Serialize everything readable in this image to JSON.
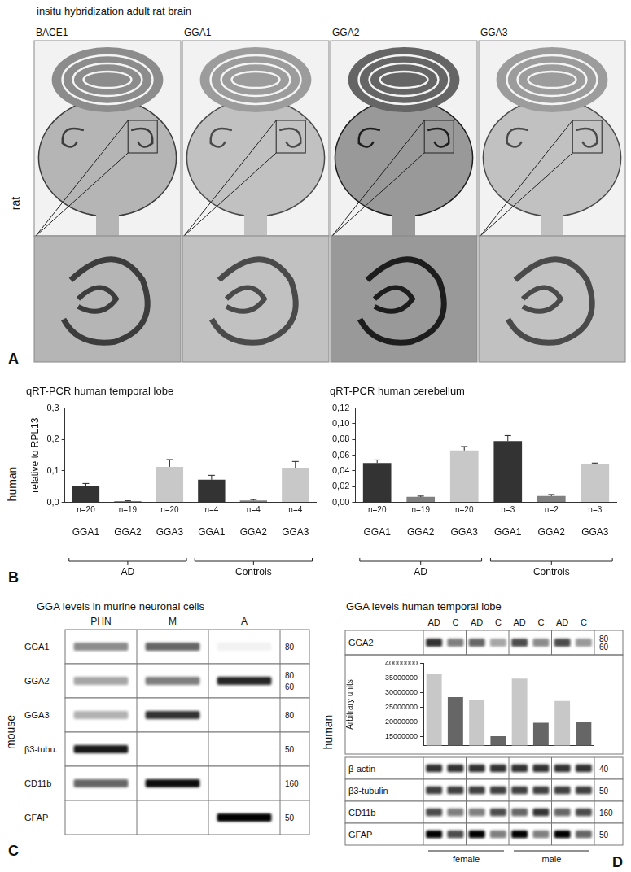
{
  "panel_A": {
    "letter": "A",
    "title": "insitu hybridization adult rat brain",
    "side_label": "rat",
    "probes": [
      "BACE1",
      "GGA1",
      "GGA2",
      "GGA3"
    ],
    "signal": [
      0.55,
      0.4,
      0.9,
      0.4
    ]
  },
  "panel_B": {
    "letter": "B",
    "side_label": "human"
  },
  "chart_data": [
    {
      "type": "bar",
      "title": "qRT-PCR human temporal lobe",
      "y_label": "relative to RPL13",
      "categories": [
        "GGA1",
        "GGA2",
        "GGA3",
        "GGA1",
        "GGA2",
        "GGA3"
      ],
      "values": [
        0.052,
        0.004,
        0.113,
        0.072,
        0.006,
        0.11
      ],
      "errors": [
        0.008,
        0.001,
        0.023,
        0.014,
        0.003,
        0.02
      ],
      "n_labels": [
        "n=20",
        "n=19",
        "n=20",
        "n=4",
        "n=4",
        "n=4"
      ],
      "groups": [
        "AD",
        "Controls"
      ],
      "colors": [
        "#333333",
        "#808080",
        "#c8c8c8",
        "#333333",
        "#808080",
        "#c8c8c8"
      ],
      "ylim": [
        0,
        0.3
      ],
      "yticks": [
        {
          "value": 0,
          "label": "0,0"
        },
        {
          "value": 0.1,
          "label": "0,1"
        },
        {
          "value": 0.2,
          "label": "0,2"
        },
        {
          "value": 0.3,
          "label": "0,3"
        }
      ],
      "grid": false
    },
    {
      "type": "bar",
      "title": "qRT-PCR human cerebellum",
      "categories": [
        "GGA1",
        "GGA2",
        "GGA3",
        "GGA1",
        "GGA2",
        "GGA3"
      ],
      "values": [
        0.05,
        0.007,
        0.066,
        0.078,
        0.008,
        0.049
      ],
      "errors": [
        0.004,
        0.001,
        0.005,
        0.007,
        0.002,
        0.001
      ],
      "n_labels": [
        "n=20",
        "n=19",
        "n=20",
        "n=3",
        "n=2",
        "n=3"
      ],
      "groups": [
        "AD",
        "Controls"
      ],
      "colors": [
        "#333333",
        "#808080",
        "#c8c8c8",
        "#333333",
        "#808080",
        "#c8c8c8"
      ],
      "ylim": [
        0,
        0.12
      ],
      "yticks": [
        {
          "value": 0,
          "label": "0,00"
        },
        {
          "value": 0.02,
          "label": "0,02"
        },
        {
          "value": 0.04,
          "label": "0,04"
        },
        {
          "value": 0.06,
          "label": "0,06"
        },
        {
          "value": 0.08,
          "label": "0,08"
        },
        {
          "value": 0.1,
          "label": "0,10"
        },
        {
          "value": 0.12,
          "label": "0,12"
        }
      ],
      "grid": false
    },
    {
      "type": "bar",
      "y_label": "Arbitrary units",
      "categories": [
        "AD",
        "C",
        "AD",
        "C",
        "AD",
        "C",
        "AD",
        "C"
      ],
      "values": [
        36500000,
        28500000,
        27500000,
        15200000,
        34800000,
        19800000,
        27200000,
        20200000
      ],
      "colors": [
        "#c8c8c8",
        "#666666",
        "#c8c8c8",
        "#666666",
        "#c8c8c8",
        "#666666",
        "#c8c8c8",
        "#666666"
      ],
      "ylim": [
        12000000,
        40000000
      ],
      "yticks": [
        15000000,
        20000000,
        25000000,
        30000000,
        35000000,
        40000000
      ],
      "grid": false,
      "tick_labels": "y"
    }
  ],
  "panel_C": {
    "letter": "C",
    "side_label": "mouse",
    "title": "GGA levels in murine neuronal cells",
    "lanes": [
      "PHN",
      "M",
      "A"
    ],
    "rows": [
      {
        "label": "GGA1",
        "markers": [
          80
        ],
        "intensity": [
          0.45,
          0.6,
          0.05
        ]
      },
      {
        "label": "GGA2",
        "markers": [
          80,
          60
        ],
        "intensity": [
          0.35,
          0.5,
          0.85
        ]
      },
      {
        "label": "GGA3",
        "markers": [
          80
        ],
        "intensity": [
          0.3,
          0.8,
          0.0
        ]
      },
      {
        "label": "β3-tubu.",
        "markers": [
          50
        ],
        "intensity": [
          0.9,
          0.0,
          0.0
        ]
      },
      {
        "label": "CD11b",
        "markers": [
          160
        ],
        "intensity": [
          0.6,
          0.95,
          0.0
        ]
      },
      {
        "label": "GFAP",
        "markers": [
          50
        ],
        "intensity": [
          0.0,
          0.0,
          1.0
        ]
      }
    ]
  },
  "panel_D": {
    "letter": "D",
    "side_label": "human",
    "title": "GGA levels human temporal lobe",
    "rows_above_chart": [
      {
        "label": "GGA2",
        "markers": [
          80,
          60
        ],
        "intensity": [
          0.8,
          0.5,
          0.6,
          0.35,
          0.7,
          0.45,
          0.7,
          0.4
        ]
      }
    ],
    "rows_below_chart": [
      {
        "label": "β-actin",
        "markers": [
          40
        ],
        "intensity": [
          0.8,
          0.8,
          0.8,
          0.8,
          0.8,
          0.8,
          0.8,
          0.8
        ]
      },
      {
        "label": "β3-tubulin",
        "markers": [
          50
        ],
        "intensity": [
          0.75,
          0.75,
          0.75,
          0.75,
          0.75,
          0.75,
          0.75,
          0.75
        ]
      },
      {
        "label": "CD11b",
        "markers": [
          160
        ],
        "intensity": [
          0.7,
          0.5,
          0.5,
          0.7,
          0.6,
          0.8,
          0.6,
          0.7
        ]
      },
      {
        "label": "GFAP",
        "markers": [
          50
        ],
        "intensity": [
          1.0,
          0.7,
          1.0,
          0.5,
          1.0,
          0.5,
          1.0,
          0.6
        ]
      }
    ],
    "sex_groups": [
      "female",
      "male"
    ]
  }
}
